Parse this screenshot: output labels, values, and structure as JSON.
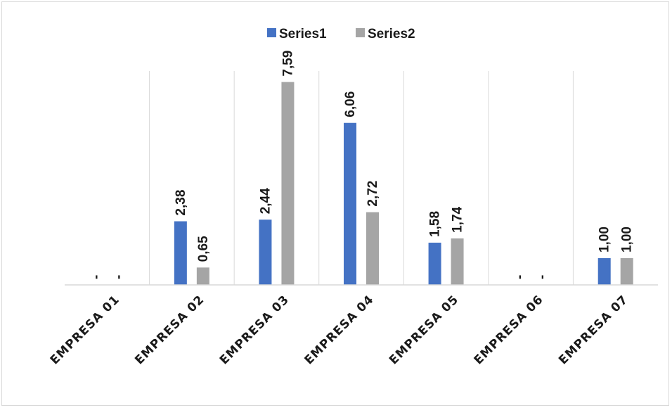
{
  "chart_data": {
    "type": "bar",
    "categories": [
      "EMPRESA 01",
      "EMPRESA 02",
      "EMPRESA 03",
      "EMPRESA 04",
      "EMPRESA 05",
      "EMPRESA 06",
      "EMPRESA 07"
    ],
    "series": [
      {
        "name": "Series1",
        "color": "#4472c4",
        "values": [
          0,
          2.38,
          2.44,
          6.06,
          1.58,
          0,
          1.0
        ],
        "labels": [
          "-",
          "2,38",
          "2,44",
          "6,06",
          "1,58",
          "-",
          "1,00"
        ]
      },
      {
        "name": "Series2",
        "color": "#a5a5a5",
        "values": [
          0,
          0.65,
          7.59,
          2.72,
          1.74,
          0,
          1.0
        ],
        "labels": [
          "-",
          "0,65",
          "7,59",
          "2,72",
          "1,74",
          "-",
          "1,00"
        ]
      }
    ],
    "title": "",
    "xlabel": "",
    "ylabel": "",
    "ylim": [
      0,
      8
    ],
    "grid": "vertical category separators",
    "legend": "top-center"
  }
}
